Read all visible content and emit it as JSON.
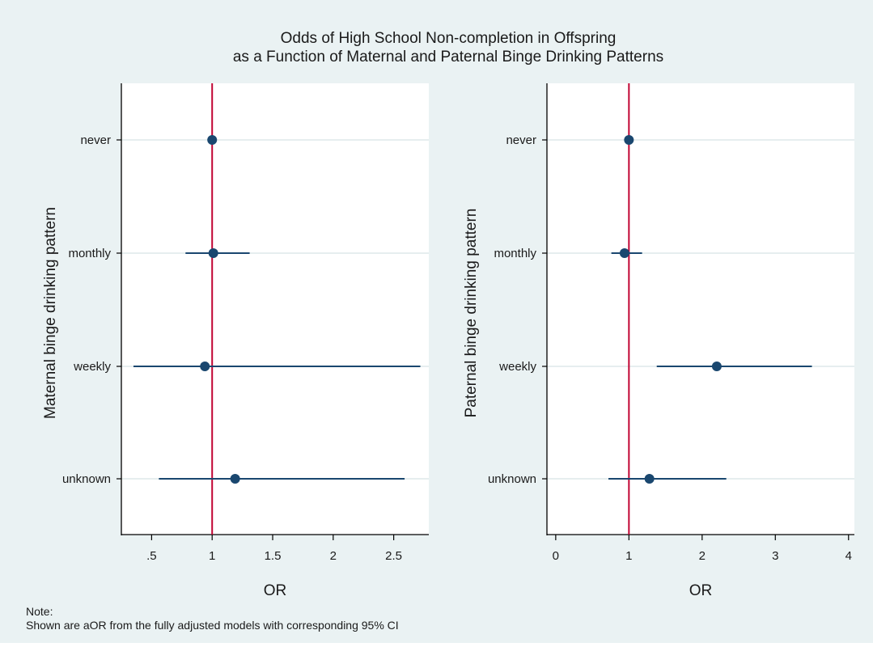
{
  "figure": {
    "title_lines": [
      "Odds of High School Non-completion in Offspring",
      "as a Function of Maternal and Paternal Binge Drinking Patterns"
    ],
    "note_lines": [
      "Note:",
      "Shown are aOR from the fully adjusted models with corresponding 95% CI"
    ]
  },
  "colors": {
    "plot_background": "#ffffff",
    "figure_background": "#eaf2f3",
    "point_color": "#1a476f",
    "reference_line": "#c10534",
    "gridline": "#e6eeef"
  },
  "chart_data": [
    {
      "type": "scatter",
      "title": "",
      "xlabel": "OR",
      "ylabel": "Maternal binge drinking pattern",
      "categories": [
        "never",
        "monthly",
        "weekly",
        "unknown"
      ],
      "series": [
        {
          "estimate": [
            1.0,
            1.01,
            0.94,
            1.19
          ],
          "ci_low": [
            1.0,
            0.78,
            0.35,
            0.56
          ],
          "ci_high": [
            1.0,
            1.31,
            2.72,
            2.59
          ]
        }
      ],
      "reference_line": 1,
      "xlim": [
        0.25,
        2.79
      ],
      "xticks": [
        0.5,
        1,
        1.5,
        2,
        2.5
      ],
      "xtick_labels": [
        ".5",
        "1",
        "1.5",
        "2",
        "2.5"
      ],
      "grid": true,
      "legend": "none"
    },
    {
      "type": "scatter",
      "title": "",
      "xlabel": "OR",
      "ylabel": "Paternal binge drinking pattern",
      "categories": [
        "never",
        "monthly",
        "weekly",
        "unknown"
      ],
      "series": [
        {
          "estimate": [
            1.0,
            0.94,
            2.2,
            1.28
          ],
          "ci_low": [
            1.0,
            0.76,
            1.38,
            0.72
          ],
          "ci_high": [
            1.0,
            1.18,
            3.5,
            2.33
          ]
        }
      ],
      "reference_line": 1,
      "xlim": [
        -0.12,
        4.08
      ],
      "xticks": [
        0,
        1,
        2,
        3,
        4
      ],
      "xtick_labels": [
        "0",
        "1",
        "2",
        "3",
        "4"
      ],
      "grid": true,
      "legend": "none"
    }
  ]
}
